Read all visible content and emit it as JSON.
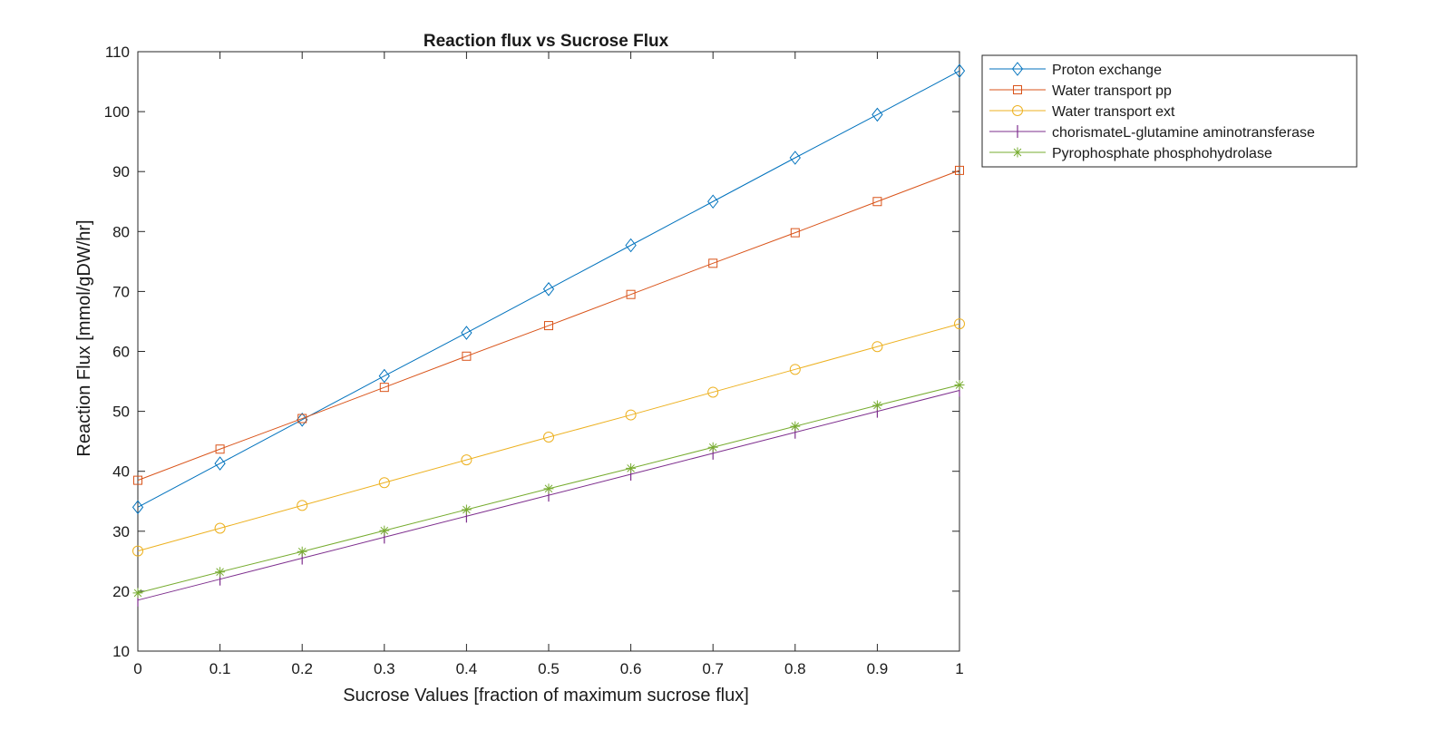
{
  "chart_data": {
    "type": "line",
    "title": "Reaction flux vs Sucrose Flux",
    "xlabel": "Sucrose Values [fraction of maximum sucrose flux]",
    "ylabel": "Reaction Flux [mmol/gDW/hr]",
    "x": [
      0,
      0.1,
      0.2,
      0.3,
      0.4,
      0.5,
      0.6,
      0.7,
      0.8,
      0.9,
      1
    ],
    "xlim": [
      0,
      1
    ],
    "ylim": [
      10,
      110
    ],
    "xticks": [
      "0",
      "0.1",
      "0.2",
      "0.3",
      "0.4",
      "0.5",
      "0.6",
      "0.7",
      "0.8",
      "0.9",
      "1"
    ],
    "yticks": [
      "10",
      "20",
      "30",
      "40",
      "50",
      "60",
      "70",
      "80",
      "90",
      "100",
      "110"
    ],
    "grid": false,
    "legend_position": "outside-top-right",
    "series": [
      {
        "name": "Proton exchange",
        "color": "#0072BD",
        "marker": "diamond",
        "values": [
          34.0,
          41.3,
          48.6,
          55.9,
          63.1,
          70.4,
          77.7,
          85.0,
          92.3,
          99.5,
          106.8
        ]
      },
      {
        "name": "Water transport pp",
        "color": "#D95319",
        "marker": "square",
        "values": [
          38.5,
          43.7,
          48.8,
          54.0,
          59.2,
          64.3,
          69.5,
          74.7,
          79.8,
          85.0,
          90.2
        ]
      },
      {
        "name": "Water transport ext",
        "color": "#EDB120",
        "marker": "circle",
        "values": [
          26.7,
          30.5,
          34.3,
          38.1,
          41.9,
          45.7,
          49.4,
          53.2,
          57.0,
          60.8,
          64.6
        ]
      },
      {
        "name": "chorismateL-glutamine aminotransferase",
        "color": "#7E2F8E",
        "marker": "vline",
        "values": [
          18.5,
          22.0,
          25.5,
          29.0,
          32.5,
          36.0,
          39.5,
          43.0,
          46.5,
          50.0,
          53.5
        ]
      },
      {
        "name": "Pyrophosphate phosphohydrolase",
        "color": "#77AC30",
        "marker": "asterisk",
        "values": [
          19.7,
          23.2,
          26.6,
          30.1,
          33.6,
          37.1,
          40.5,
          44.0,
          47.5,
          51.0,
          54.4
        ]
      }
    ]
  }
}
